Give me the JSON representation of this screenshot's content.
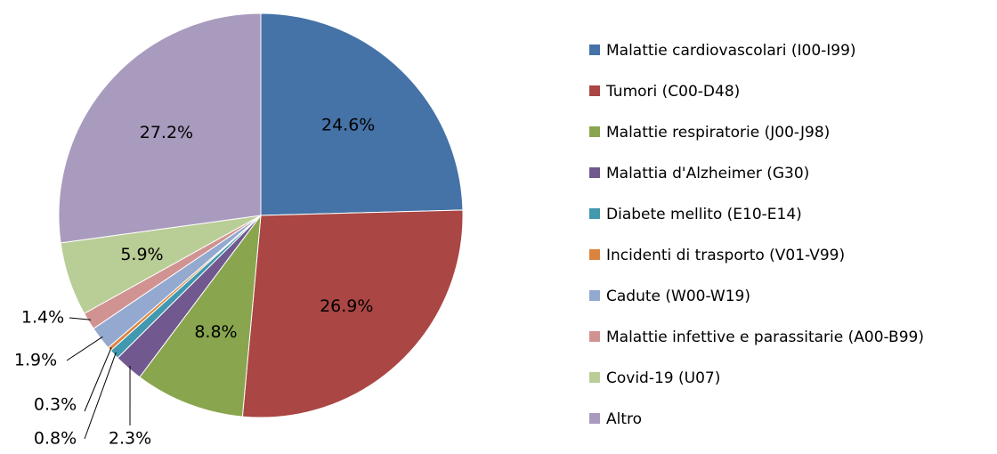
{
  "chart_data": {
    "type": "pie",
    "categories": [
      "Malattie cardiovascolari (I00-I99)",
      "Tumori (C00-D48)",
      "Malattie respiratorie (J00-J98)",
      "Malattia d'Alzheimer (G30)",
      "Diabete mellito (E10-E14)",
      "Incidenti di trasporto (V01-V99)",
      "Cadute (W00-W19)",
      "Malattie infettive e parassitarie (A00-B99)",
      "Covid-19 (U07)",
      "Altro"
    ],
    "values": [
      24.6,
      26.9,
      8.8,
      2.3,
      0.8,
      0.3,
      1.9,
      1.4,
      5.9,
      27.2
    ],
    "value_labels": [
      "24.6%",
      "26.9%",
      "8.8%",
      "2.3%",
      "0.8%",
      "0.3%",
      "1.9%",
      "1.4%",
      "5.9%",
      "27.2%"
    ],
    "colors": [
      "#4572A7",
      "#AA4643",
      "#89A54E",
      "#71588F",
      "#4198AF",
      "#DB843D",
      "#93A9CF",
      "#D19392",
      "#B9CD96",
      "#A99BBD"
    ],
    "legend": "right"
  }
}
